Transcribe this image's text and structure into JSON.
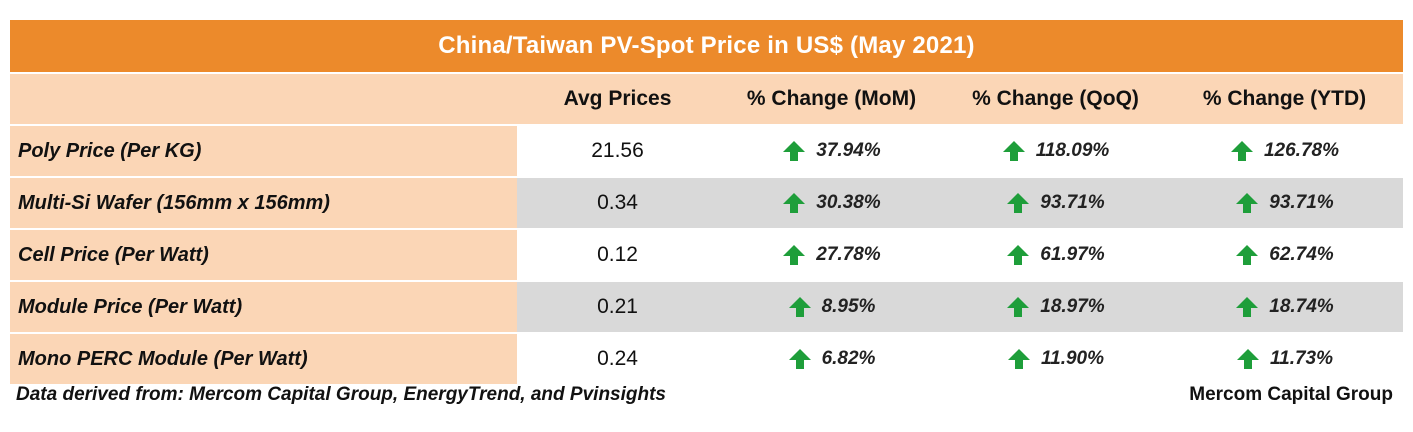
{
  "table": {
    "title": "China/Taiwan PV-Spot Price in US$ (May 2021)",
    "columns": [
      "Avg Prices",
      "% Change (MoM)",
      "% Change (QoQ)",
      "% Change (YTD)"
    ],
    "rows": [
      {
        "label": "Poly Price (Per KG)",
        "avg": "21.56",
        "mom": "37.94%",
        "qoq": "118.09%",
        "ytd": "126.78%"
      },
      {
        "label": "Multi-Si Wafer (156mm x 156mm)",
        "avg": "0.34",
        "mom": "30.38%",
        "qoq": "93.71%",
        "ytd": "93.71%"
      },
      {
        "label": "Cell Price (Per Watt)",
        "avg": "0.12",
        "mom": "27.78%",
        "qoq": "61.97%",
        "ytd": "62.74%"
      },
      {
        "label": "Module Price (Per Watt)",
        "avg": "0.21",
        "mom": "8.95%",
        "qoq": "18.97%",
        "ytd": "18.74%"
      },
      {
        "label": "Mono PERC Module (Per Watt)",
        "avg": "0.24",
        "mom": "6.82%",
        "qoq": "11.90%",
        "ytd": "11.73%"
      }
    ]
  },
  "footer": {
    "note": "Data derived from: Mercom Capital Group, EnergyTrend, and Pvinsights",
    "credit": "Mercom Capital Group"
  },
  "colors": {
    "title_bg": "#ec8a2b",
    "header_bg": "#fbd6b6",
    "row_gray": "#d9d9d9",
    "arrow_up": "#1e9e3a"
  },
  "icons": {
    "change": "arrow-up-icon"
  }
}
